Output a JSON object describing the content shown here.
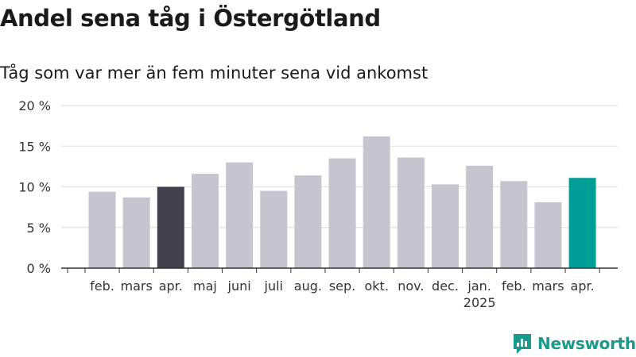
{
  "title": "Andel sena tåg i Östergötland",
  "subtitle": "Tåg som var mer än fem minuter sena vid ankomst",
  "logo_text": "Newsworthy",
  "colors": {
    "bar_default": "#c6c4ce",
    "bar_highlight_dark": "#43414e",
    "bar_highlight_latest": "#009e96",
    "grid": "#dedede",
    "axis": "#333333",
    "logo": "#1a9a8d"
  },
  "chart_data": {
    "type": "bar",
    "categories": [
      "feb.",
      "mars",
      "apr.",
      "maj",
      "juni",
      "juli",
      "aug.",
      "sep.",
      "okt.",
      "nov.",
      "dec.",
      "jan.",
      "feb.",
      "mars",
      "apr."
    ],
    "category_sublabels": [
      "",
      "",
      "",
      "",
      "",
      "",
      "",
      "",
      "",
      "",
      "",
      "2025",
      "",
      "",
      ""
    ],
    "values": [
      9.4,
      8.7,
      10.0,
      11.6,
      13.0,
      9.5,
      11.4,
      13.5,
      16.2,
      13.6,
      10.3,
      12.6,
      10.7,
      8.1,
      11.1
    ],
    "highlights": [
      "",
      "",
      "dark",
      "",
      "",
      "",
      "",
      "",
      "",
      "",
      "",
      "",
      "",
      "",
      "latest"
    ],
    "yticks": [
      0,
      5,
      10,
      15,
      20
    ],
    "ytick_labels": [
      "0 %",
      "5 %",
      "10 %",
      "15 %",
      "20 %"
    ],
    "ylim": [
      0,
      20
    ],
    "grid": true,
    "xlabel": "",
    "ylabel": ""
  }
}
